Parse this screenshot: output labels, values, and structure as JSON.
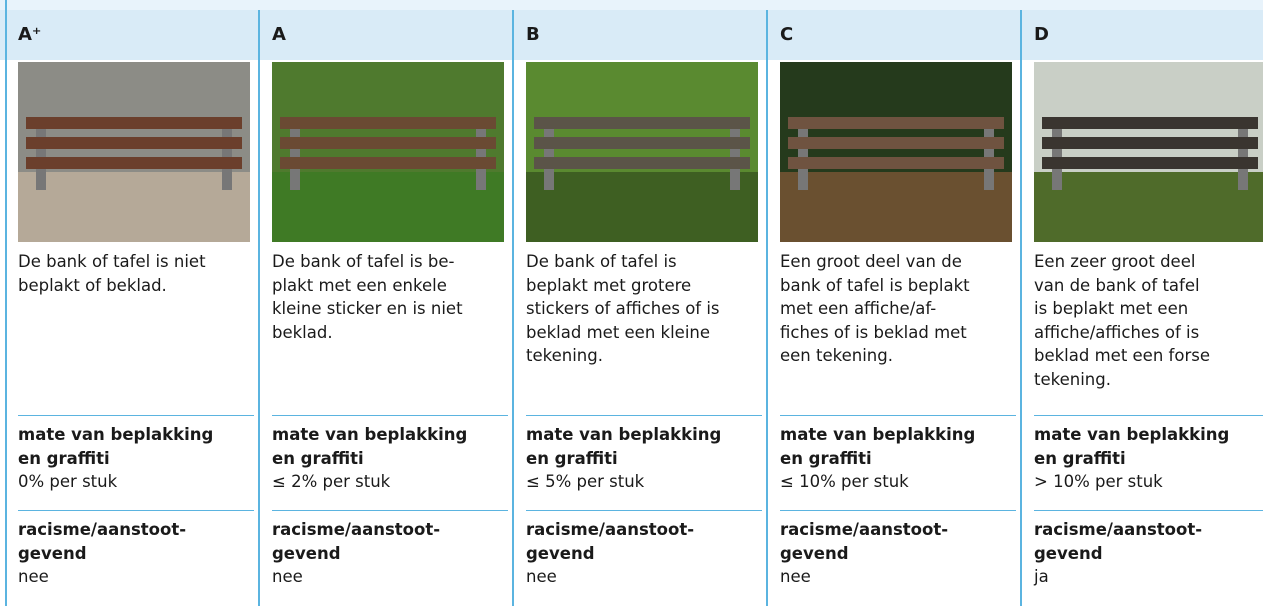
{
  "columns": [
    {
      "grade": "A⁺",
      "description": [
        "De bank of tafel is niet",
        "beplakt of beklad."
      ],
      "criteria": [
        {
          "label": [
            "mate van beplakking",
            "en graffiti"
          ],
          "value": "0% per stuk"
        },
        {
          "label": [
            "racisme/aanstoot-",
            "gevend"
          ],
          "value": "nee"
        }
      ]
    },
    {
      "grade": "A",
      "description": [
        "De bank of tafel is be-",
        "plakt met een enkele",
        "kleine sticker en is niet",
        "beklad."
      ],
      "criteria": [
        {
          "label": [
            "mate van beplakking",
            "en graffiti"
          ],
          "value": "≤ 2% per stuk"
        },
        {
          "label": [
            "racisme/aanstoot-",
            "gevend"
          ],
          "value": "nee"
        }
      ]
    },
    {
      "grade": "B",
      "description": [
        "De bank of tafel is",
        "beplakt met grotere",
        "stickers of affiches of is",
        "beklad met een kleine",
        "tekening."
      ],
      "criteria": [
        {
          "label": [
            "mate van beplakking",
            "en graffiti"
          ],
          "value": "≤ 5% per stuk"
        },
        {
          "label": [
            "racisme/aanstoot-",
            "gevend"
          ],
          "value": "nee"
        }
      ]
    },
    {
      "grade": "C",
      "description": [
        "Een groot deel van de",
        "bank of tafel is beplakt",
        "met een affiche/af-",
        "fiches of is beklad met",
        "een tekening."
      ],
      "criteria": [
        {
          "label": [
            "mate van beplakking",
            "en graffiti"
          ],
          "value": "≤ 10% per stuk"
        },
        {
          "label": [
            "racisme/aanstoot-",
            "gevend"
          ],
          "value": "nee"
        }
      ]
    },
    {
      "grade": "D",
      "description": [
        "Een zeer groot deel",
        "van de bank of tafel",
        "is beplakt met een",
        "affiche/affiches of is",
        "beklad met een forse",
        "tekening."
      ],
      "criteria": [
        {
          "label": [
            "mate van beplakking",
            "en graffiti"
          ],
          "value": "> 10% per stuk"
        },
        {
          "label": [
            "racisme/aanstoot-",
            "gevend"
          ],
          "value": "ja"
        }
      ]
    }
  ]
}
